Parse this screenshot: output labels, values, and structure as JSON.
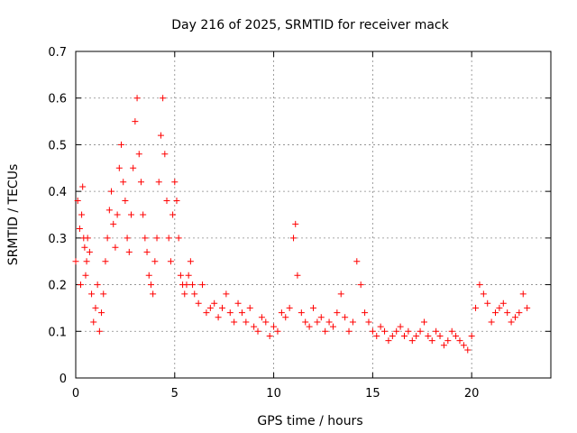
{
  "chart_data": {
    "type": "scatter",
    "title": "Day 216 of 2025, SRMTID for receiver mack",
    "xlabel": "GPS time / hours",
    "ylabel": "SRMTID / TECUs",
    "xlim": [
      0,
      24
    ],
    "ylim": [
      0,
      0.7
    ],
    "xticks": [
      0,
      5,
      10,
      15,
      20
    ],
    "yticks": [
      0,
      0.1,
      0.2,
      0.3,
      0.4,
      0.5,
      0.6,
      0.7
    ],
    "xtick_labels": [
      "0",
      "5",
      "10",
      "15",
      "20"
    ],
    "ytick_labels": [
      "0",
      "0.1",
      "0.2",
      "0.3",
      "0.4",
      "0.5",
      "0.6",
      "0.7"
    ],
    "grid": true,
    "marker": "+",
    "series": [
      {
        "name": "SRMTID",
        "color": "#ff0000",
        "x": [
          0.0,
          0.1,
          0.2,
          0.25,
          0.3,
          0.35,
          0.4,
          0.45,
          0.5,
          0.55,
          0.6,
          0.7,
          0.8,
          0.9,
          1.0,
          1.1,
          1.2,
          1.3,
          1.4,
          1.5,
          1.6,
          1.7,
          1.8,
          1.9,
          2.0,
          2.1,
          2.2,
          2.3,
          2.4,
          2.5,
          2.6,
          2.7,
          2.8,
          2.9,
          3.0,
          3.1,
          3.2,
          3.3,
          3.4,
          3.5,
          3.6,
          3.7,
          3.8,
          3.9,
          4.0,
          4.1,
          4.2,
          4.3,
          4.4,
          4.5,
          4.6,
          4.7,
          4.8,
          4.9,
          5.0,
          5.1,
          5.2,
          5.3,
          5.4,
          5.5,
          5.6,
          5.7,
          5.8,
          5.9,
          6.0,
          6.2,
          6.4,
          6.6,
          6.8,
          7.0,
          7.2,
          7.4,
          7.6,
          7.8,
          8.0,
          8.2,
          8.4,
          8.6,
          8.8,
          9.0,
          9.2,
          9.4,
          9.6,
          9.8,
          10.0,
          10.2,
          10.4,
          10.6,
          10.8,
          11.0,
          11.1,
          11.2,
          11.4,
          11.6,
          11.8,
          12.0,
          12.2,
          12.4,
          12.6,
          12.8,
          13.0,
          13.2,
          13.4,
          13.6,
          13.8,
          14.0,
          14.2,
          14.4,
          14.6,
          14.8,
          15.0,
          15.2,
          15.4,
          15.6,
          15.8,
          16.0,
          16.2,
          16.4,
          16.6,
          16.8,
          17.0,
          17.2,
          17.4,
          17.6,
          17.8,
          18.0,
          18.2,
          18.4,
          18.6,
          18.8,
          19.0,
          19.2,
          19.4,
          19.6,
          19.8,
          20.0,
          20.2,
          20.4,
          20.6,
          20.8,
          21.0,
          21.2,
          21.4,
          21.6,
          21.8,
          22.0,
          22.2,
          22.4,
          22.6,
          22.8
        ],
        "y": [
          0.25,
          0.38,
          0.32,
          0.2,
          0.35,
          0.41,
          0.3,
          0.28,
          0.22,
          0.25,
          0.3,
          0.27,
          0.18,
          0.12,
          0.15,
          0.2,
          0.1,
          0.14,
          0.18,
          0.25,
          0.3,
          0.36,
          0.4,
          0.33,
          0.28,
          0.35,
          0.45,
          0.5,
          0.42,
          0.38,
          0.3,
          0.27,
          0.35,
          0.45,
          0.55,
          0.6,
          0.48,
          0.42,
          0.35,
          0.3,
          0.27,
          0.22,
          0.2,
          0.18,
          0.25,
          0.3,
          0.42,
          0.52,
          0.6,
          0.48,
          0.38,
          0.3,
          0.25,
          0.35,
          0.42,
          0.38,
          0.3,
          0.22,
          0.2,
          0.18,
          0.2,
          0.22,
          0.25,
          0.2,
          0.18,
          0.16,
          0.2,
          0.14,
          0.15,
          0.16,
          0.13,
          0.15,
          0.18,
          0.14,
          0.12,
          0.16,
          0.14,
          0.12,
          0.15,
          0.11,
          0.1,
          0.13,
          0.12,
          0.09,
          0.11,
          0.1,
          0.14,
          0.13,
          0.15,
          0.3,
          0.33,
          0.22,
          0.14,
          0.12,
          0.11,
          0.15,
          0.12,
          0.13,
          0.1,
          0.12,
          0.11,
          0.14,
          0.18,
          0.13,
          0.1,
          0.12,
          0.25,
          0.2,
          0.14,
          0.12,
          0.1,
          0.09,
          0.11,
          0.1,
          0.08,
          0.09,
          0.1,
          0.11,
          0.09,
          0.1,
          0.08,
          0.09,
          0.1,
          0.12,
          0.09,
          0.08,
          0.1,
          0.09,
          0.07,
          0.08,
          0.1,
          0.09,
          0.08,
          0.07,
          0.06,
          0.09,
          0.15,
          0.2,
          0.18,
          0.16,
          0.12,
          0.14,
          0.15,
          0.16,
          0.14,
          0.12,
          0.13,
          0.14,
          0.18,
          0.15
        ]
      }
    ]
  }
}
